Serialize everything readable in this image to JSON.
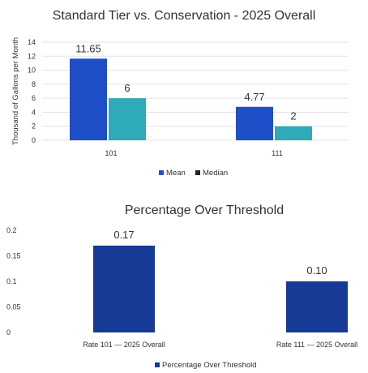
{
  "chart_data": [
    {
      "type": "bar",
      "title": "Standard Tier vs. Conservation - 2025 Overall",
      "ylabel": "Thousand of Gallons per Month",
      "categories": [
        "101",
        "111"
      ],
      "yticks": [
        "0",
        "2",
        "4",
        "6",
        "8",
        "10",
        "12",
        "14"
      ],
      "ylim": [
        0,
        14
      ],
      "series": [
        {
          "name": "Mean",
          "values": [
            11.65,
            4.77
          ],
          "labels": [
            "11.65",
            "4.77"
          ],
          "color": "#1f4fc8"
        },
        {
          "name": "Median",
          "values": [
            6,
            2
          ],
          "labels": [
            "6",
            "2"
          ],
          "color": "#2eaab8"
        }
      ],
      "legend": "bottom",
      "grid": true
    },
    {
      "type": "bar",
      "title": "Percentage Over Threshold",
      "ylabel": "",
      "categories": [
        "Rate 101 — 2025 Overall",
        "Rate 111 — 2025 Overall"
      ],
      "yticks": [
        "0",
        "0.05",
        "0.1",
        "0.15",
        "0.2"
      ],
      "ylim": [
        0,
        0.2
      ],
      "series": [
        {
          "name": "Percentage Over Threshold",
          "values": [
            0.17,
            0.1
          ],
          "labels": [
            "0.17",
            "0.10"
          ],
          "color": "#163a96"
        }
      ],
      "legend": "bottom",
      "grid": false
    }
  ]
}
